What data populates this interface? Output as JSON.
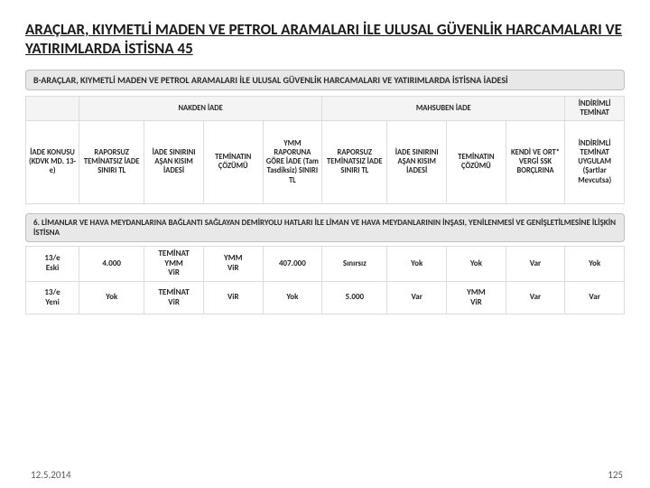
{
  "title": "ARAÇLAR, KIYMETLİ MADEN VE PETROL ARAMALARI İLE ULUSAL GÜVENLİK HARCAMALARI VE YATIRIMLARDA İSTİSNA 45",
  "subheading": "B-ARAÇLAR, KIYMETLİ MADEN VE PETROL ARAMALARI İLE ULUSAL GÜVENLİK HARCAMALARI VE YATIRIMLARDA İSTİSNA İADESİ",
  "group_headers": {
    "nakden": "NAKDEN İADE",
    "mahsuben": "MAHSUBEN İADE",
    "indirimli": "İNDİRİMLİ TEMİNAT"
  },
  "top_table": {
    "col0": "İADE KONUSU (KDVK MD. 13-e)",
    "c1": "RAPORSUZ TEMİNATSIZ İADE SINIRI TL",
    "c2": "İADE SINIRINI AŞAN KISIM İADESİ",
    "c3": "TEMİNATIN ÇÖZÜMÜ",
    "c4": "YMM RAPORUNA GÖRE İADE (Tam Tasdiksiz) SINIRI TL",
    "c5": "RAPORSUZ TEMİNATSIZ İADE SINIRI TL",
    "c6": "İADE SINIRINI AŞAN KISIM İADESİ",
    "c7": "TEMİNATIN ÇÖZÜMÜ",
    "c8": "KENDİ VE ORT* VERGİ SSK BORÇLRINA",
    "c9": "İNDİRİMLİ TEMİNAT UYGULAM (Şartlar Mevcutsa)"
  },
  "section2": "6. LİMANLAR VE HAVA MEYDANLARINA BAĞLANTI SAĞLAYAN DEMİRYOLU HATLARI İLE LİMAN VE HAVA MEYDANLARININ İNŞASI, YENİLENMESİ VE GENİŞLETİLMESİNE İLİŞKİN İSTİSNA",
  "bottom_rows": [
    {
      "label": "13/e",
      "sublabel": "Eski",
      "cells": [
        "4.000",
        "TEMİNAT\nYMM\nViR",
        "YMM\nViR",
        "407.000",
        "Sınırsız",
        "Yok",
        "Yok",
        "Var",
        "Yok"
      ]
    },
    {
      "label": "13/e",
      "sublabel": "Yeni",
      "cells": [
        "Yok",
        "TEMİNAT\nViR",
        "ViR",
        "Yok",
        "5.000",
        "Var",
        "YMM\nViR",
        "Var",
        "Var"
      ]
    }
  ],
  "footer": {
    "date": "12.5.2014",
    "page": "125"
  },
  "colors": {
    "band_bg": "#e8e8e8",
    "border": "#dcdcdc"
  }
}
